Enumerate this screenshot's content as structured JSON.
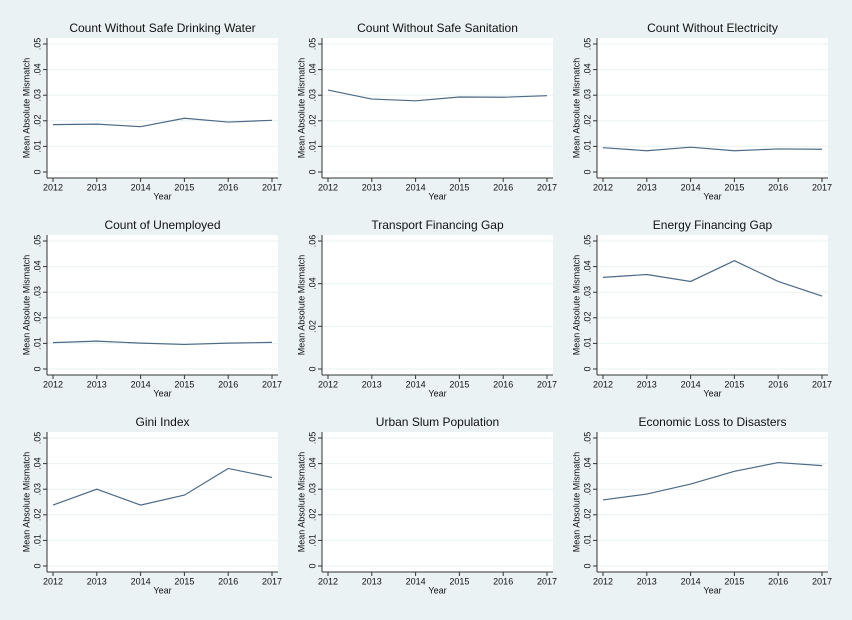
{
  "chart_data": [
    {
      "type": "line",
      "title": "Count Without Safe Drinking Water",
      "xlabel": "Year",
      "ylabel": "Mean Absolute Mismatch",
      "x": [
        2012,
        2013,
        2014,
        2015,
        2016,
        2017
      ],
      "values": [
        0.0185,
        0.0187,
        0.0177,
        0.021,
        0.0195,
        0.0202
      ],
      "color": "#4d6a86",
      "xlim": [
        2012,
        2017
      ],
      "xticks": [
        2012,
        2013,
        2014,
        2015,
        2016,
        2017
      ],
      "ylim": [
        0,
        0.05
      ],
      "yticks": [
        0,
        {
          "value": 0.01,
          "label": ".01"
        },
        {
          "value": 0.02,
          "label": ".02"
        },
        {
          "value": 0.03,
          "label": ".03"
        },
        {
          "value": 0.04,
          "label": ".04"
        },
        {
          "value": 0.05,
          "label": ".05"
        }
      ],
      "grid": true
    },
    {
      "type": "line",
      "title": "Count Without Safe Sanitation",
      "xlabel": "Year",
      "ylabel": "Mean Absolute Mismatch",
      "x": [
        2012,
        2013,
        2014,
        2015,
        2016,
        2017
      ],
      "values": [
        0.032,
        0.0285,
        0.0278,
        0.0293,
        0.0292,
        0.0298
      ],
      "color": "#4d6a86",
      "xlim": [
        2012,
        2017
      ],
      "xticks": [
        2012,
        2013,
        2014,
        2015,
        2016,
        2017
      ],
      "ylim": [
        0,
        0.05
      ],
      "yticks": [
        0,
        {
          "value": 0.01,
          "label": ".01"
        },
        {
          "value": 0.02,
          "label": ".02"
        },
        {
          "value": 0.03,
          "label": ".03"
        },
        {
          "value": 0.04,
          "label": ".04"
        },
        {
          "value": 0.05,
          "label": ".05"
        }
      ],
      "grid": true
    },
    {
      "type": "line",
      "title": "Count Without Electricity",
      "xlabel": "Year",
      "ylabel": "Mean Absolute Mismatch",
      "x": [
        2012,
        2013,
        2014,
        2015,
        2016,
        2017
      ],
      "values": [
        0.0095,
        0.0083,
        0.0097,
        0.0083,
        0.009,
        0.0089
      ],
      "color": "#4d6a86",
      "xlim": [
        2012,
        2017
      ],
      "xticks": [
        2012,
        2013,
        2014,
        2015,
        2016,
        2017
      ],
      "ylim": [
        0,
        0.05
      ],
      "yticks": [
        0,
        {
          "value": 0.01,
          "label": ".01"
        },
        {
          "value": 0.02,
          "label": ".02"
        },
        {
          "value": 0.03,
          "label": ".03"
        },
        {
          "value": 0.04,
          "label": ".04"
        },
        {
          "value": 0.05,
          "label": ".05"
        }
      ],
      "grid": true
    },
    {
      "type": "line",
      "title": "Count of Unemployed",
      "xlabel": "Year",
      "ylabel": "Mean Absolute Mismatch",
      "x": [
        2012,
        2013,
        2014,
        2015,
        2016,
        2017
      ],
      "values": [
        0.0103,
        0.0109,
        0.0101,
        0.0096,
        0.0101,
        0.0104
      ],
      "color": "#4d6a86",
      "xlim": [
        2012,
        2017
      ],
      "xticks": [
        2012,
        2013,
        2014,
        2015,
        2016,
        2017
      ],
      "ylim": [
        0,
        0.05
      ],
      "yticks": [
        0,
        {
          "value": 0.01,
          "label": ".01"
        },
        {
          "value": 0.02,
          "label": ".02"
        },
        {
          "value": 0.03,
          "label": ".03"
        },
        {
          "value": 0.04,
          "label": ".04"
        },
        {
          "value": 0.05,
          "label": ".05"
        }
      ],
      "grid": true
    },
    {
      "type": "line",
      "title": "Transport Financing Gap",
      "xlabel": "Year",
      "ylabel": "Mean Absolute Mismatch",
      "x": [
        2012,
        2013,
        2014,
        2015,
        2016,
        2017
      ],
      "values": [
        null,
        null,
        null,
        null,
        null,
        null
      ],
      "color": "#4d6a86",
      "xlim": [
        2012,
        2017
      ],
      "xticks": [
        2012,
        2013,
        2014,
        2015,
        2016,
        2017
      ],
      "ylim": [
        0,
        0.06
      ],
      "yticks": [
        0,
        {
          "value": 0.02,
          "label": ".02"
        },
        {
          "value": 0.04,
          "label": ".04"
        },
        {
          "value": 0.06,
          "label": ".06"
        }
      ],
      "grid": true
    },
    {
      "type": "line",
      "title": "Energy Financing Gap",
      "xlabel": "Year",
      "ylabel": "Mean Absolute Mismatch",
      "x": [
        2012,
        2013,
        2014,
        2015,
        2016,
        2017
      ],
      "values": [
        0.0358,
        0.0369,
        0.0342,
        0.0423,
        0.0342,
        0.0285
      ],
      "color": "#4d6a86",
      "xlim": [
        2012,
        2017
      ],
      "xticks": [
        2012,
        2013,
        2014,
        2015,
        2016,
        2017
      ],
      "ylim": [
        0,
        0.05
      ],
      "yticks": [
        0,
        {
          "value": 0.01,
          "label": ".01"
        },
        {
          "value": 0.02,
          "label": ".02"
        },
        {
          "value": 0.03,
          "label": ".03"
        },
        {
          "value": 0.04,
          "label": ".04"
        },
        {
          "value": 0.05,
          "label": ".05"
        }
      ],
      "grid": true
    },
    {
      "type": "line",
      "title": "Gini Index",
      "xlabel": "Year",
      "ylabel": "Mean Absolute Mismatch",
      "x": [
        2012,
        2013,
        2014,
        2015,
        2016,
        2017
      ],
      "values": [
        0.0238,
        0.03,
        0.0238,
        0.0277,
        0.0381,
        0.0346
      ],
      "color": "#4d6a86",
      "xlim": [
        2012,
        2017
      ],
      "xticks": [
        2012,
        2013,
        2014,
        2015,
        2016,
        2017
      ],
      "ylim": [
        0,
        0.05
      ],
      "yticks": [
        0,
        {
          "value": 0.01,
          "label": ".01"
        },
        {
          "value": 0.02,
          "label": ".02"
        },
        {
          "value": 0.03,
          "label": ".03"
        },
        {
          "value": 0.04,
          "label": ".04"
        },
        {
          "value": 0.05,
          "label": ".05"
        }
      ],
      "grid": true
    },
    {
      "type": "line",
      "title": "Urban Slum Population",
      "xlabel": "Year",
      "ylabel": "Mean Absolute Mismatch",
      "x": [
        2012,
        2013,
        2014,
        2015,
        2016,
        2017
      ],
      "values": [
        null,
        null,
        null,
        null,
        null,
        null
      ],
      "color": "#4d6a86",
      "xlim": [
        2012,
        2017
      ],
      "xticks": [
        2012,
        2013,
        2014,
        2015,
        2016,
        2017
      ],
      "ylim": [
        0,
        0.05
      ],
      "yticks": [
        0,
        {
          "value": 0.01,
          "label": ".01"
        },
        {
          "value": 0.02,
          "label": ".02"
        },
        {
          "value": 0.03,
          "label": ".03"
        },
        {
          "value": 0.04,
          "label": ".04"
        },
        {
          "value": 0.05,
          "label": ".05"
        }
      ],
      "grid": true
    },
    {
      "type": "line",
      "title": "Economic Loss to Disasters",
      "xlabel": "Year",
      "ylabel": "Mean Absolute Mismatch",
      "x": [
        2012,
        2013,
        2014,
        2015,
        2016,
        2017
      ],
      "values": [
        0.0258,
        0.0281,
        0.032,
        0.037,
        0.0404,
        0.0392
      ],
      "color": "#4d6a86",
      "xlim": [
        2012,
        2017
      ],
      "xticks": [
        2012,
        2013,
        2014,
        2015,
        2016,
        2017
      ],
      "ylim": [
        0,
        0.05
      ],
      "yticks": [
        0,
        {
          "value": 0.01,
          "label": ".01"
        },
        {
          "value": 0.02,
          "label": ".02"
        },
        {
          "value": 0.03,
          "label": ".03"
        },
        {
          "value": 0.04,
          "label": ".04"
        },
        {
          "value": 0.05,
          "label": ".05"
        }
      ],
      "grid": true
    }
  ]
}
